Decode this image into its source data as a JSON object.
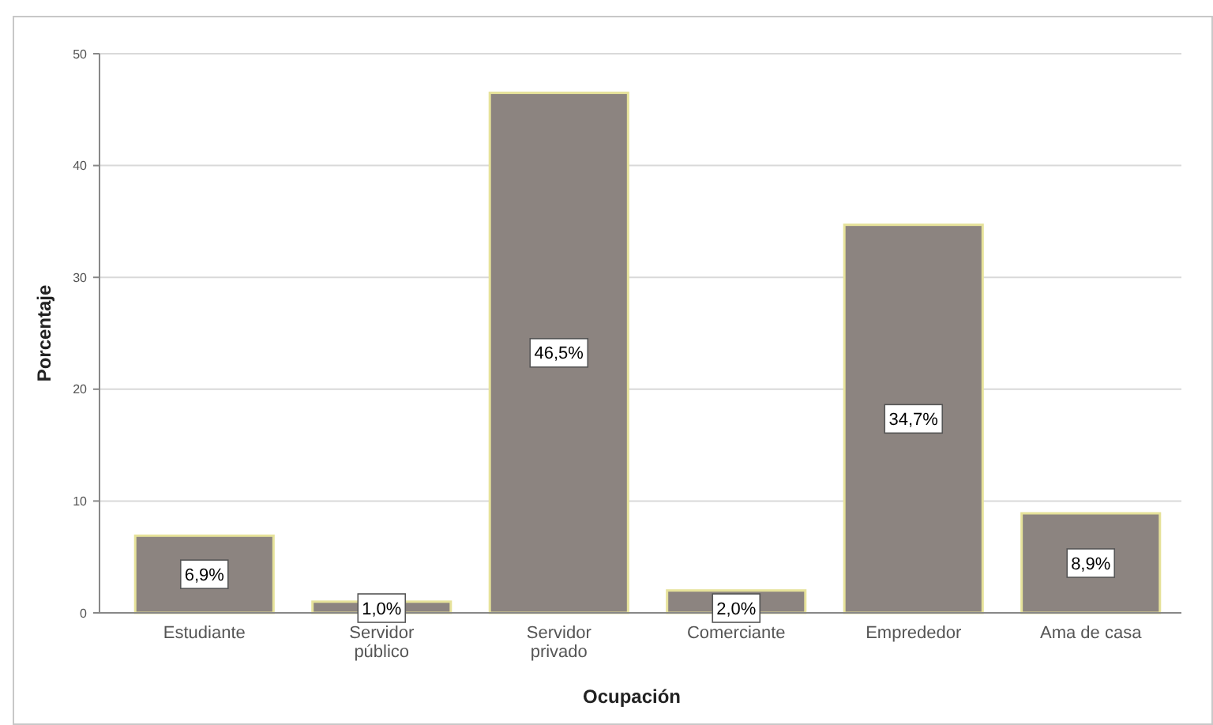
{
  "chart_data": {
    "type": "bar",
    "xlabel": "Ocupación",
    "ylabel": "Porcentaje",
    "categories": [
      "Estudiante",
      "Servidor\npúblico",
      "Servidor\nprivado",
      "Comerciante",
      "Emprededor",
      "Ama de casa"
    ],
    "values": [
      6.9,
      1.0,
      46.5,
      2.0,
      34.7,
      8.9
    ],
    "value_labels": [
      "6,9%",
      "1,0%",
      "46,5%",
      "2,0%",
      "34,7%",
      "8,9%"
    ],
    "color": "#8c8480",
    "ylim": [
      0,
      50
    ],
    "yticks": [
      0,
      10,
      20,
      30,
      40,
      50
    ],
    "grid": "y"
  }
}
